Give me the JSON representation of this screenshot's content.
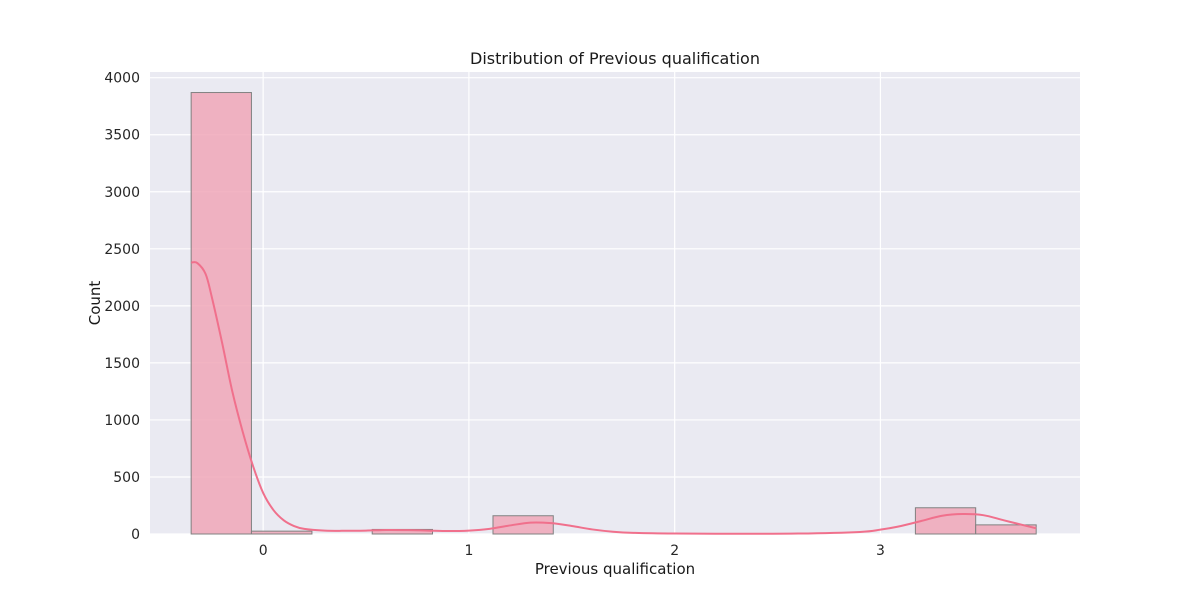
{
  "chart_data": {
    "type": "bar",
    "title": "Distribution of Previous qualification",
    "xlabel": "Previous qualification",
    "ylabel": "Count",
    "xlim": [
      -0.55,
      3.97
    ],
    "ylim": [
      0,
      4050
    ],
    "grid": true,
    "x_ticks": [
      0,
      1,
      2,
      3
    ],
    "y_ticks": [
      0,
      500,
      1000,
      1500,
      2000,
      2500,
      3000,
      3500,
      4000
    ],
    "bins": [
      {
        "x0": -0.35,
        "x1": -0.057,
        "count": 3870
      },
      {
        "x0": -0.057,
        "x1": 0.237,
        "count": 25
      },
      {
        "x0": 0.237,
        "x1": 0.53,
        "count": 0
      },
      {
        "x0": 0.53,
        "x1": 0.823,
        "count": 40
      },
      {
        "x0": 0.823,
        "x1": 1.117,
        "count": 0
      },
      {
        "x0": 1.117,
        "x1": 1.41,
        "count": 160
      },
      {
        "x0": 1.41,
        "x1": 1.703,
        "count": 0
      },
      {
        "x0": 1.703,
        "x1": 1.997,
        "count": 0
      },
      {
        "x0": 1.997,
        "x1": 2.29,
        "count": 0
      },
      {
        "x0": 2.29,
        "x1": 2.583,
        "count": 0
      },
      {
        "x0": 2.583,
        "x1": 2.877,
        "count": 0
      },
      {
        "x0": 2.877,
        "x1": 3.17,
        "count": 0
      },
      {
        "x0": 3.17,
        "x1": 3.463,
        "count": 230
      },
      {
        "x0": 3.463,
        "x1": 3.757,
        "count": 80
      }
    ],
    "kde": {
      "x": [
        -0.35,
        -0.32,
        -0.28,
        -0.25,
        -0.2,
        -0.15,
        -0.1,
        -0.05,
        0.0,
        0.05,
        0.1,
        0.15,
        0.2,
        0.3,
        0.4,
        0.5,
        0.6,
        0.7,
        0.8,
        0.9,
        1.0,
        1.1,
        1.2,
        1.3,
        1.4,
        1.5,
        1.6,
        1.7,
        1.8,
        2.0,
        2.3,
        2.6,
        2.9,
        3.0,
        3.1,
        3.2,
        3.3,
        3.4,
        3.5,
        3.6,
        3.7,
        3.757
      ],
      "y": [
        2380,
        2375,
        2280,
        2080,
        1680,
        1250,
        900,
        600,
        360,
        210,
        120,
        70,
        45,
        30,
        28,
        30,
        35,
        34,
        30,
        26,
        30,
        45,
        75,
        100,
        95,
        70,
        40,
        20,
        10,
        4,
        2,
        4,
        18,
        38,
        70,
        115,
        160,
        175,
        165,
        120,
        75,
        50
      ]
    },
    "colors": {
      "bar_fill": "#f0a7b9",
      "bar_edge": "#808080",
      "kde_line": "#f0708c",
      "plot_bg": "#eaeaf2",
      "grid": "#ffffff"
    }
  }
}
